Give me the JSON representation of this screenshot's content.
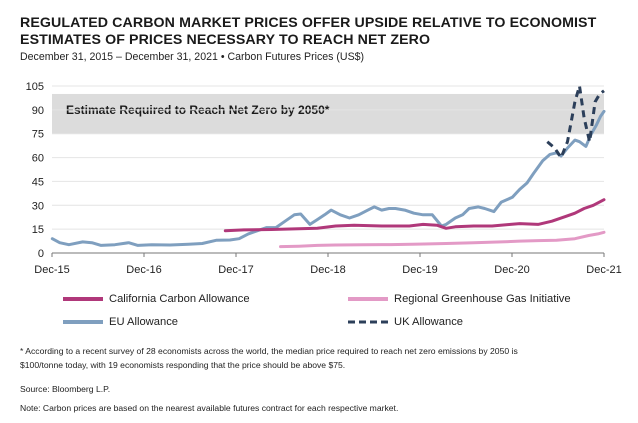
{
  "title_line1": "REGULATED CARBON MARKET PRICES OFFER UPSIDE RELATIVE TO ECONOMIST",
  "title_line2": "ESTIMATES OF PRICES NECESSARY TO REACH NET ZERO",
  "subtitle": "December 31, 2015 – December 31, 2021 • Carbon Futures Prices (US$)",
  "legend": {
    "cca": "California Carbon Allowance",
    "rggi": "Regional Greenhouse Gas Initiative",
    "eua": "EU Allowance",
    "uka": "UK Allowance"
  },
  "footnote_line1": "* According to a recent survey of 28 economists across the world, the median price required to reach net zero emissions by 2050 is",
  "footnote_line2": "$100/tonne today, with 19 economists responding that the price should be above $75.",
  "source": "Source: Bloomberg L.P.",
  "note": "Note: Carbon prices are based on the nearest available futures contract for each respective market.",
  "colors": {
    "cca": "#b0387a",
    "rggi": "#e39ac6",
    "eua": "#7f9fbf",
    "uka": "#2c3f5a",
    "band": "#dcdcdc"
  },
  "chart_data": {
    "type": "line",
    "x_range": [
      2015.9167,
      2021.9167
    ],
    "ylim": [
      0,
      105
    ],
    "yticks": [
      0,
      15,
      30,
      45,
      60,
      75,
      90,
      105
    ],
    "xticks": [
      {
        "label": "Dec-15",
        "x": 2015.9167
      },
      {
        "label": "Dec-16",
        "x": 2016.9167
      },
      {
        "label": "Dec-17",
        "x": 2017.9167
      },
      {
        "label": "Dec-18",
        "x": 2018.9167
      },
      {
        "label": "Dec-19",
        "x": 2019.9167
      },
      {
        "label": "Dec-20",
        "x": 2020.9167
      },
      {
        "label": "Dec-21",
        "x": 2021.9167
      }
    ],
    "band": {
      "y0": 75,
      "y1": 100,
      "label": "Estimate Required to Reach Net Zero by 2050*"
    },
    "series": [
      {
        "key": "eua",
        "name": "EU Allowance",
        "style": "solid",
        "points": [
          [
            2015.92,
            9
          ],
          [
            2016.0,
            6.5
          ],
          [
            2016.1,
            5.2
          ],
          [
            2016.25,
            7
          ],
          [
            2016.35,
            6.5
          ],
          [
            2016.45,
            4.8
          ],
          [
            2016.6,
            5.2
          ],
          [
            2016.75,
            6.5
          ],
          [
            2016.85,
            4.8
          ],
          [
            2017.0,
            5.2
          ],
          [
            2017.2,
            5.0
          ],
          [
            2017.4,
            5.5
          ],
          [
            2017.55,
            6
          ],
          [
            2017.7,
            8
          ],
          [
            2017.85,
            8.2
          ],
          [
            2017.95,
            9
          ],
          [
            2018.05,
            12
          ],
          [
            2018.15,
            14
          ],
          [
            2018.25,
            16
          ],
          [
            2018.35,
            16
          ],
          [
            2018.45,
            20
          ],
          [
            2018.55,
            24
          ],
          [
            2018.62,
            24.5
          ],
          [
            2018.72,
            18
          ],
          [
            2018.8,
            21
          ],
          [
            2018.88,
            24
          ],
          [
            2018.95,
            27
          ],
          [
            2019.05,
            24
          ],
          [
            2019.15,
            22
          ],
          [
            2019.25,
            24
          ],
          [
            2019.35,
            27
          ],
          [
            2019.42,
            29
          ],
          [
            2019.5,
            27
          ],
          [
            2019.58,
            28
          ],
          [
            2019.65,
            28
          ],
          [
            2019.75,
            27
          ],
          [
            2019.85,
            25
          ],
          [
            2019.95,
            24
          ],
          [
            2020.05,
            24
          ],
          [
            2020.15,
            17
          ],
          [
            2020.2,
            18
          ],
          [
            2020.3,
            22
          ],
          [
            2020.38,
            24
          ],
          [
            2020.45,
            28
          ],
          [
            2020.55,
            29
          ],
          [
            2020.62,
            28
          ],
          [
            2020.72,
            26
          ],
          [
            2020.8,
            32
          ],
          [
            2020.92,
            35
          ],
          [
            2021.0,
            40
          ],
          [
            2021.08,
            44
          ],
          [
            2021.15,
            50
          ],
          [
            2021.25,
            58
          ],
          [
            2021.33,
            62
          ],
          [
            2021.4,
            63
          ],
          [
            2021.45,
            61
          ],
          [
            2021.52,
            66
          ],
          [
            2021.6,
            71
          ],
          [
            2021.65,
            70
          ],
          [
            2021.72,
            67
          ],
          [
            2021.78,
            75
          ],
          [
            2021.83,
            80
          ],
          [
            2021.88,
            86
          ],
          [
            2021.917,
            89
          ]
        ]
      },
      {
        "key": "cca",
        "name": "California Carbon Allowance",
        "style": "solid",
        "points": [
          [
            2017.8,
            14
          ],
          [
            2018.0,
            14.5
          ],
          [
            2018.3,
            14.8
          ],
          [
            2018.6,
            15.2
          ],
          [
            2018.8,
            15.5
          ],
          [
            2019.0,
            17
          ],
          [
            2019.2,
            17.5
          ],
          [
            2019.5,
            17
          ],
          [
            2019.8,
            17
          ],
          [
            2019.95,
            18
          ],
          [
            2020.1,
            17.5
          ],
          [
            2020.2,
            15.5
          ],
          [
            2020.3,
            16.5
          ],
          [
            2020.5,
            17
          ],
          [
            2020.7,
            17
          ],
          [
            2020.9,
            18
          ],
          [
            2021.0,
            18.5
          ],
          [
            2021.2,
            18
          ],
          [
            2021.35,
            20
          ],
          [
            2021.5,
            23
          ],
          [
            2021.6,
            25
          ],
          [
            2021.7,
            28
          ],
          [
            2021.8,
            30
          ],
          [
            2021.917,
            33.5
          ]
        ]
      },
      {
        "key": "rggi",
        "name": "Regional Greenhouse Gas Initiative",
        "style": "solid",
        "points": [
          [
            2018.4,
            4
          ],
          [
            2018.6,
            4.3
          ],
          [
            2018.8,
            4.8
          ],
          [
            2019.0,
            5
          ],
          [
            2019.3,
            5.2
          ],
          [
            2019.6,
            5.3
          ],
          [
            2019.9,
            5.6
          ],
          [
            2020.2,
            6
          ],
          [
            2020.5,
            6.5
          ],
          [
            2020.8,
            7
          ],
          [
            2021.0,
            7.5
          ],
          [
            2021.2,
            7.8
          ],
          [
            2021.4,
            8
          ],
          [
            2021.6,
            9
          ],
          [
            2021.75,
            11
          ],
          [
            2021.85,
            12
          ],
          [
            2021.917,
            13
          ]
        ]
      },
      {
        "key": "uka",
        "name": "UK Allowance",
        "style": "dashed",
        "points": [
          [
            2021.3,
            70
          ],
          [
            2021.38,
            66
          ],
          [
            2021.45,
            60
          ],
          [
            2021.52,
            70
          ],
          [
            2021.6,
            95
          ],
          [
            2021.65,
            105
          ],
          [
            2021.7,
            85
          ],
          [
            2021.76,
            70
          ],
          [
            2021.82,
            95
          ],
          [
            2021.87,
            100
          ],
          [
            2021.917,
            102
          ]
        ]
      }
    ]
  }
}
